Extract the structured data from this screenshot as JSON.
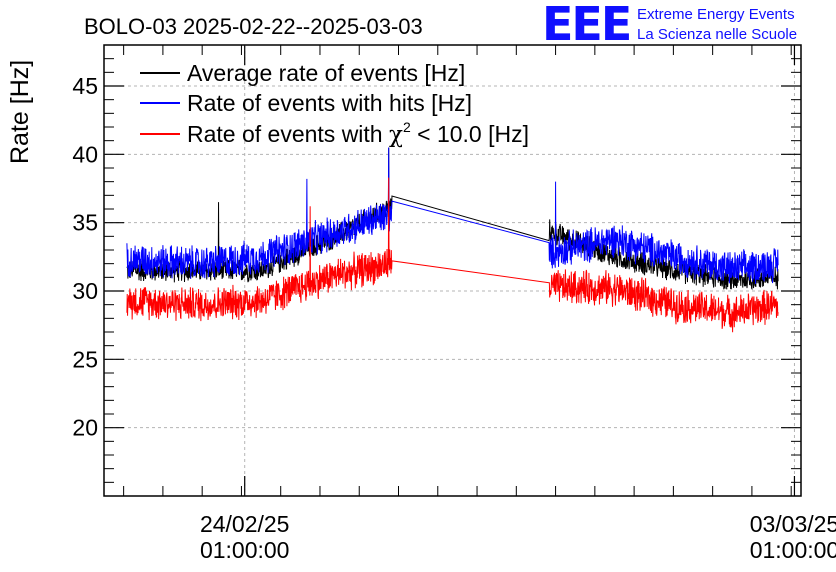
{
  "colors": {
    "black": "#000000",
    "blue": "#0000ff",
    "red": "#ff0000",
    "grid": "#b4b4b4"
  },
  "logo": {
    "mark": "EEE",
    "line1": "Extreme Energy Events",
    "line2": "La Scienza nelle Scuole"
  },
  "chart_data": {
    "type": "line",
    "title": "BOLO-03 2025-02-22--2025-03-03",
    "xlabel": "",
    "ylabel": "Rate [Hz]",
    "x_unit": "date-time",
    "xlim": [
      "2025-02-22 06:00",
      "2025-03-03 03:00"
    ],
    "ylim": [
      15,
      48
    ],
    "yticks": [
      20,
      25,
      30,
      35,
      40,
      45
    ],
    "xticks": [
      {
        "x": "2025-02-24 01:00:00",
        "label_date": "24/02/25",
        "label_time": "01:00:00"
      },
      {
        "x": "2025-03-03 01:00:00",
        "label_date": "03/03/25",
        "label_time": "01:00:00"
      }
    ],
    "grid": true,
    "legend_position": "top-left",
    "gap": [
      "2025-02-25 22:00",
      "2025-02-27 22:00"
    ],
    "series": [
      {
        "name": "Average rate of events [Hz]",
        "color": "#000000",
        "x": [
          "2025-02-22 13:00",
          "2025-02-23 12:00",
          "2025-02-24 06:00",
          "2025-02-25 05:00",
          "2025-02-25 22:00",
          "2025-02-27 22:00",
          "2025-02-28 18:00",
          "2025-03-01 12:00",
          "2025-03-02 06:00",
          "2025-03-02 20:00"
        ],
        "values": [
          31.5,
          31.5,
          31.5,
          34.0,
          36.2,
          34.4,
          32.5,
          31.5,
          30.8,
          31.0
        ],
        "noise": 0.8
      },
      {
        "name": "Rate of events with hits [Hz]",
        "color": "#0000ff",
        "x": [
          "2025-02-22 13:00",
          "2025-02-23 12:00",
          "2025-02-24 06:00",
          "2025-02-25 05:00",
          "2025-02-25 22:00",
          "2025-02-27 22:00",
          "2025-02-28 18:00",
          "2025-03-01 12:00",
          "2025-03-02 06:00",
          "2025-03-02 20:00"
        ],
        "values": [
          32.3,
          32.0,
          32.5,
          34.3,
          35.6,
          32.8,
          33.8,
          32.5,
          31.6,
          32.0
        ],
        "noise": 1.2
      },
      {
        "name": "Rate of events with χ² < 10.0 [Hz]",
        "name_parts": [
          "Rate of events with ",
          "χ",
          "2",
          " < 10.0 [Hz]"
        ],
        "color": "#ff0000",
        "x": [
          "2025-02-22 13:00",
          "2025-02-23 12:00",
          "2025-02-24 06:00",
          "2025-02-25 05:00",
          "2025-02-25 22:00",
          "2025-02-27 22:00",
          "2025-02-28 18:00",
          "2025-03-01 12:00",
          "2025-03-02 06:00",
          "2025-03-02 20:00"
        ],
        "values": [
          29.3,
          29.0,
          29.3,
          31.2,
          32.0,
          30.3,
          30.2,
          29.0,
          28.4,
          29.0
        ],
        "noise": 1.2
      }
    ]
  }
}
